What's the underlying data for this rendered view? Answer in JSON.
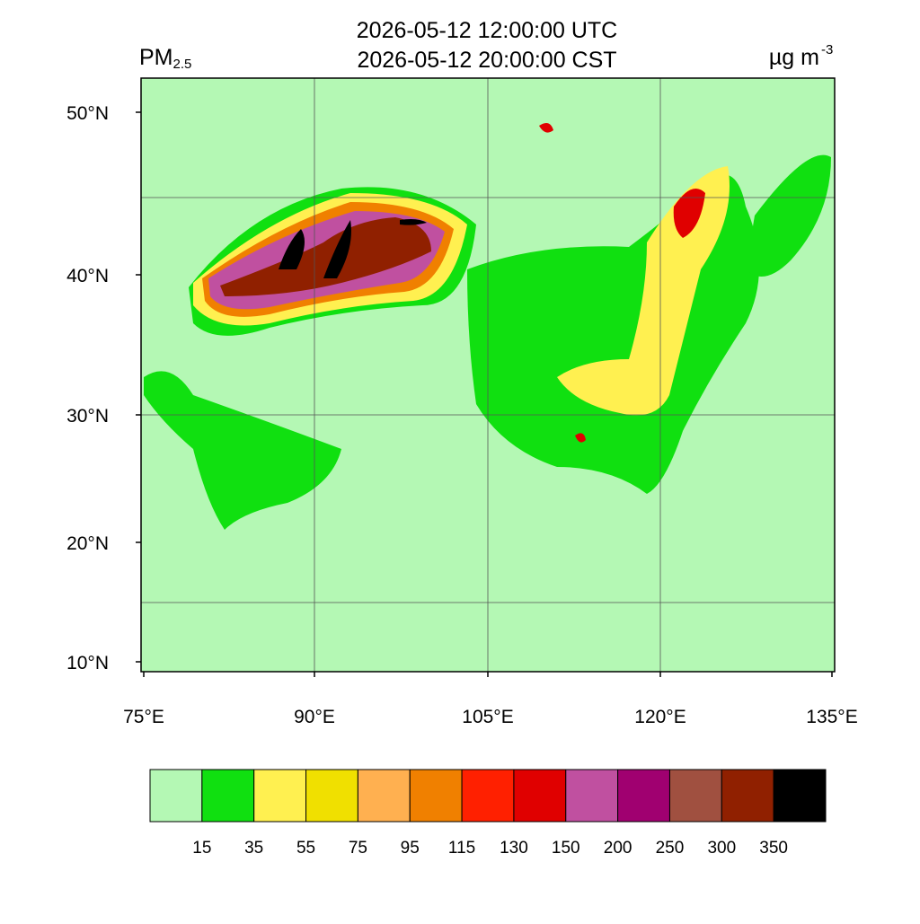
{
  "header": {
    "variable": "PM",
    "variable_sub": "2.5",
    "title_lines": [
      "2026-05-12 12:00:00 UTC",
      "2026-05-12 20:00:00 CST"
    ],
    "units": "µg m",
    "units_sup": "-3"
  },
  "map": {
    "background_color": "#b4f8b4",
    "lat_labels": [
      "50°N",
      "40°N",
      "30°N",
      "20°N",
      "10°N"
    ],
    "lon_labels": [
      "75°E",
      "90°E",
      "105°E",
      "120°E",
      "135°E"
    ]
  },
  "colorbar": {
    "colors": [
      "#b4f8b4",
      "#10e010",
      "#fff050",
      "#f0e000",
      "#ffb050",
      "#f08000",
      "#ff2000",
      "#e00000",
      "#c050a0",
      "#a00070",
      "#a05040",
      "#902000",
      "#000000"
    ],
    "levels": [
      15,
      35,
      55,
      75,
      95,
      115,
      130,
      150,
      200,
      250,
      300,
      350
    ]
  }
}
